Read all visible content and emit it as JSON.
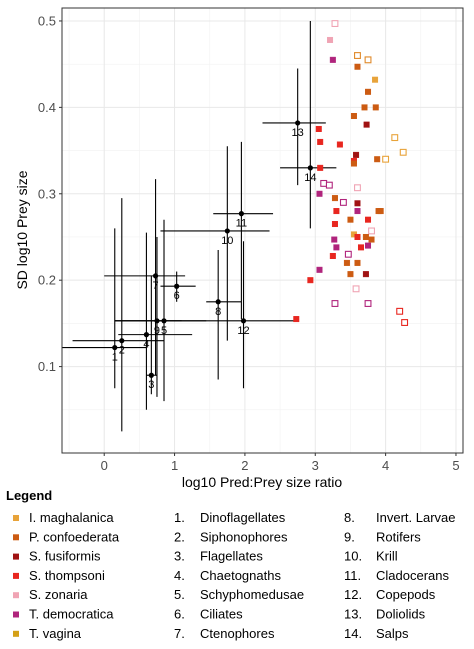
{
  "chart_data": {
    "type": "scatter",
    "xlabel": "log10 Pred:Prey size ratio",
    "ylabel": "SD log10 Prey size",
    "xlim": [
      -0.6,
      5.1
    ],
    "ylim": [
      0.0,
      0.515
    ],
    "x_ticks": [
      0,
      1,
      2,
      3,
      4,
      5
    ],
    "y_ticks": [
      0.1,
      0.2,
      0.3,
      0.4,
      0.5
    ],
    "x_tick_labels": [
      "0",
      "1",
      "2",
      "3",
      "4",
      "5"
    ],
    "y_tick_labels": [
      "0.1",
      "0.2",
      "0.3",
      "0.4",
      "0.5"
    ],
    "grid": true,
    "legend_position": "bottom",
    "species_legend": [
      {
        "name": "I. maghalanica",
        "color": "#e8a33a",
        "filled": true
      },
      {
        "name": "P. confoederata",
        "color": "#cc5b12",
        "filled": true
      },
      {
        "name": "S. fusiformis",
        "color": "#a01212",
        "filled": true
      },
      {
        "name": "S. thompsoni",
        "color": "#e8261f",
        "filled": true
      },
      {
        "name": "S. zonaria",
        "color": "#f0a4b4",
        "filled": true
      },
      {
        "name": "T. democratica",
        "color": "#b0247c",
        "filled": true
      },
      {
        "name": "T. vagina",
        "color": "#d4a017",
        "filled": true
      }
    ],
    "prey_groups": [
      {
        "number": "1.",
        "name": "Dinoflagellates"
      },
      {
        "number": "2.",
        "name": "Siphonophores"
      },
      {
        "number": "3.",
        "name": "Flagellates"
      },
      {
        "number": "4.",
        "name": "Chaetognaths"
      },
      {
        "number": "5.",
        "name": "Schyphomedusae"
      },
      {
        "number": "6.",
        "name": "Ciliates"
      },
      {
        "number": "7.",
        "name": "Ctenophores"
      },
      {
        "number": "8.",
        "name": "Invert. Larvae"
      },
      {
        "number": "9.",
        "name": "Rotifers"
      },
      {
        "number": "10.",
        "name": "Krill"
      },
      {
        "number": "11.",
        "name": "Cladocerans"
      },
      {
        "number": "12.",
        "name": "Copepods"
      },
      {
        "number": "13.",
        "name": "Doliolids"
      },
      {
        "number": "14.",
        "name": "Salps"
      }
    ],
    "prey_points": [
      {
        "label": "1",
        "x": 0.15,
        "y": 0.122,
        "xmin": -0.9,
        "xmax": 0.6,
        "ymin": 0.075,
        "ymax": 0.26
      },
      {
        "label": "2",
        "x": 0.25,
        "y": 0.13,
        "xmin": -0.45,
        "xmax": 0.85,
        "ymin": 0.025,
        "ymax": 0.295
      },
      {
        "label": "3",
        "x": 0.67,
        "y": 0.09,
        "xmin": 0.6,
        "xmax": 0.75,
        "ymin": 0.068,
        "ymax": 0.205
      },
      {
        "label": "4",
        "x": 0.6,
        "y": 0.137,
        "xmin": 0.2,
        "xmax": 1.25,
        "ymin": 0.05,
        "ymax": 0.255
      },
      {
        "label": "5",
        "x": 0.85,
        "y": 0.153,
        "xmin": 0.15,
        "xmax": 1.45,
        "ymin": 0.06,
        "ymax": 0.27
      },
      {
        "label": "6",
        "x": 1.03,
        "y": 0.193,
        "xmin": 0.8,
        "xmax": 1.3,
        "ymin": 0.175,
        "ymax": 0.21
      },
      {
        "label": "7",
        "x": 0.73,
        "y": 0.205,
        "xmin": 0.0,
        "xmax": 1.15,
        "ymin": 0.09,
        "ymax": 0.317
      },
      {
        "label": "8",
        "x": 1.62,
        "y": 0.175,
        "xmin": 1.45,
        "xmax": 1.95,
        "ymin": 0.085,
        "ymax": 0.235
      },
      {
        "label": "9",
        "x": 0.75,
        "y": 0.153,
        "xmin": 0.15,
        "xmax": 1.1,
        "ymin": 0.065,
        "ymax": 0.25
      },
      {
        "label": "10",
        "x": 1.75,
        "y": 0.257,
        "xmin": 0.8,
        "xmax": 2.35,
        "ymin": 0.13,
        "ymax": 0.355
      },
      {
        "label": "11",
        "x": 1.95,
        "y": 0.277,
        "xmin": 1.55,
        "xmax": 2.4,
        "ymin": 0.155,
        "ymax": 0.36
      },
      {
        "label": "12",
        "x": 1.98,
        "y": 0.153,
        "xmin": 0.15,
        "xmax": 2.75,
        "ymin": 0.075,
        "ymax": 0.245
      },
      {
        "label": "13",
        "x": 2.75,
        "y": 0.382,
        "xmin": 2.25,
        "xmax": 3.15,
        "ymin": 0.31,
        "ymax": 0.445
      },
      {
        "label": "14",
        "x": 2.93,
        "y": 0.33,
        "xmin": 2.5,
        "xmax": 3.3,
        "ymin": 0.26,
        "ymax": 0.5
      }
    ],
    "salp_points": [
      {
        "x": 3.28,
        "y": 0.497,
        "color": "#f0a4b4",
        "filled": false
      },
      {
        "x": 3.21,
        "y": 0.478,
        "color": "#f0a4b4",
        "filled": true
      },
      {
        "x": 3.25,
        "y": 0.455,
        "color": "#b0247c",
        "filled": true
      },
      {
        "x": 3.6,
        "y": 0.46,
        "color": "#e08a2a",
        "filled": false
      },
      {
        "x": 3.75,
        "y": 0.455,
        "color": "#e08a2a",
        "filled": false
      },
      {
        "x": 3.6,
        "y": 0.447,
        "color": "#cc5b12",
        "filled": true
      },
      {
        "x": 3.85,
        "y": 0.432,
        "color": "#e8a33a",
        "filled": true
      },
      {
        "x": 3.75,
        "y": 0.418,
        "color": "#cc5b12",
        "filled": true
      },
      {
        "x": 3.7,
        "y": 0.4,
        "color": "#cc5b12",
        "filled": true
      },
      {
        "x": 3.86,
        "y": 0.4,
        "color": "#cc5b12",
        "filled": true
      },
      {
        "x": 3.55,
        "y": 0.39,
        "color": "#cc5b12",
        "filled": true
      },
      {
        "x": 3.05,
        "y": 0.375,
        "color": "#e8261f",
        "filled": true
      },
      {
        "x": 3.73,
        "y": 0.38,
        "color": "#a01212",
        "filled": true
      },
      {
        "x": 3.07,
        "y": 0.36,
        "color": "#e8261f",
        "filled": true
      },
      {
        "x": 3.35,
        "y": 0.357,
        "color": "#e8261f",
        "filled": true
      },
      {
        "x": 3.58,
        "y": 0.345,
        "color": "#a01212",
        "filled": true
      },
      {
        "x": 4.13,
        "y": 0.365,
        "color": "#e8a33a",
        "filled": false
      },
      {
        "x": 4.25,
        "y": 0.348,
        "color": "#e8a33a",
        "filled": false
      },
      {
        "x": 3.88,
        "y": 0.34,
        "color": "#cc5b12",
        "filled": true
      },
      {
        "x": 4.0,
        "y": 0.34,
        "color": "#e8a33a",
        "filled": false
      },
      {
        "x": 3.55,
        "y": 0.338,
        "color": "#e8261f",
        "filled": true
      },
      {
        "x": 3.07,
        "y": 0.33,
        "color": "#e8261f",
        "filled": true
      },
      {
        "x": 3.55,
        "y": 0.335,
        "color": "#cc5b12",
        "filled": true
      },
      {
        "x": 3.12,
        "y": 0.312,
        "color": "#b0247c",
        "filled": false
      },
      {
        "x": 3.2,
        "y": 0.31,
        "color": "#b0247c",
        "filled": false
      },
      {
        "x": 3.06,
        "y": 0.3,
        "color": "#b0247c",
        "filled": true
      },
      {
        "x": 3.6,
        "y": 0.307,
        "color": "#f0a4b4",
        "filled": false
      },
      {
        "x": 3.28,
        "y": 0.295,
        "color": "#cc5b12",
        "filled": true
      },
      {
        "x": 3.4,
        "y": 0.29,
        "color": "#b0247c",
        "filled": false
      },
      {
        "x": 3.6,
        "y": 0.289,
        "color": "#a01212",
        "filled": true
      },
      {
        "x": 3.3,
        "y": 0.28,
        "color": "#e8261f",
        "filled": true
      },
      {
        "x": 3.6,
        "y": 0.28,
        "color": "#b0247c",
        "filled": true
      },
      {
        "x": 3.9,
        "y": 0.28,
        "color": "#cc5b12",
        "filled": true
      },
      {
        "x": 3.93,
        "y": 0.28,
        "color": "#cc5b12",
        "filled": true
      },
      {
        "x": 3.5,
        "y": 0.27,
        "color": "#cc5b12",
        "filled": true
      },
      {
        "x": 3.75,
        "y": 0.27,
        "color": "#e8261f",
        "filled": true
      },
      {
        "x": 3.28,
        "y": 0.265,
        "color": "#e8261f",
        "filled": true
      },
      {
        "x": 3.8,
        "y": 0.257,
        "color": "#f0a4b4",
        "filled": false
      },
      {
        "x": 3.55,
        "y": 0.253,
        "color": "#e8a33a",
        "filled": true
      },
      {
        "x": 3.6,
        "y": 0.25,
        "color": "#e8261f",
        "filled": true
      },
      {
        "x": 3.72,
        "y": 0.25,
        "color": "#cc5b12",
        "filled": true
      },
      {
        "x": 3.27,
        "y": 0.247,
        "color": "#b0247c",
        "filled": true
      },
      {
        "x": 3.8,
        "y": 0.247,
        "color": "#cc5b12",
        "filled": true
      },
      {
        "x": 3.75,
        "y": 0.24,
        "color": "#b0247c",
        "filled": true
      },
      {
        "x": 3.65,
        "y": 0.238,
        "color": "#e8261f",
        "filled": true
      },
      {
        "x": 3.3,
        "y": 0.238,
        "color": "#b0247c",
        "filled": true
      },
      {
        "x": 3.47,
        "y": 0.23,
        "color": "#b0247c",
        "filled": false
      },
      {
        "x": 3.25,
        "y": 0.228,
        "color": "#e8261f",
        "filled": true
      },
      {
        "x": 3.6,
        "y": 0.22,
        "color": "#cc5b12",
        "filled": true
      },
      {
        "x": 3.45,
        "y": 0.22,
        "color": "#cc5b12",
        "filled": true
      },
      {
        "x": 3.06,
        "y": 0.212,
        "color": "#b0247c",
        "filled": true
      },
      {
        "x": 3.5,
        "y": 0.207,
        "color": "#cc5b12",
        "filled": true
      },
      {
        "x": 3.72,
        "y": 0.207,
        "color": "#a01212",
        "filled": true
      },
      {
        "x": 2.93,
        "y": 0.2,
        "color": "#e8261f",
        "filled": true
      },
      {
        "x": 3.58,
        "y": 0.19,
        "color": "#f0a4b4",
        "filled": false
      },
      {
        "x": 3.28,
        "y": 0.173,
        "color": "#b0247c",
        "filled": false
      },
      {
        "x": 3.75,
        "y": 0.173,
        "color": "#b0247c",
        "filled": false
      },
      {
        "x": 4.2,
        "y": 0.164,
        "color": "#e8261f",
        "filled": false
      },
      {
        "x": 4.27,
        "y": 0.151,
        "color": "#e8261f",
        "filled": false
      },
      {
        "x": 2.73,
        "y": 0.155,
        "color": "#e8261f",
        "filled": true
      }
    ]
  },
  "legend": {
    "title": "Legend"
  }
}
